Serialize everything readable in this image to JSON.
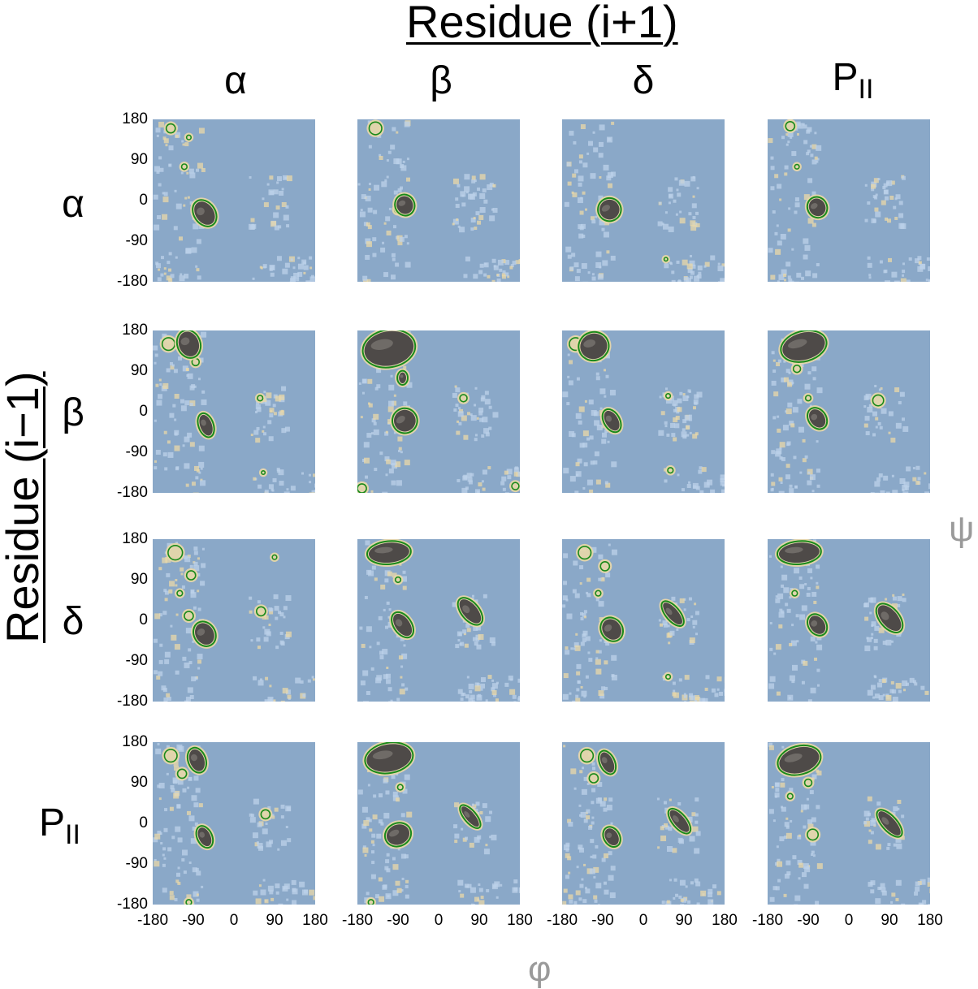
{
  "chart_data": {
    "type": "heatmap",
    "title": "",
    "column_header": "Residue (i+1)",
    "row_header": "Residue (i−1)",
    "columns": [
      {
        "label": "α",
        "sub": ""
      },
      {
        "label": "β",
        "sub": ""
      },
      {
        "label": "δ",
        "sub": ""
      },
      {
        "label": "P",
        "sub": "II"
      }
    ],
    "rows": [
      {
        "label": "α",
        "sub": ""
      },
      {
        "label": "β",
        "sub": ""
      },
      {
        "label": "δ",
        "sub": ""
      },
      {
        "label": "P",
        "sub": "II"
      }
    ],
    "xlabel": "φ",
    "ylabel": "ψ",
    "xlim": [
      -180,
      180
    ],
    "ylim": [
      -180,
      180
    ],
    "x_ticks": [
      "-180",
      "-90",
      "0",
      "90",
      "180"
    ],
    "y_ticks": [
      "180",
      "90",
      "0",
      "-90",
      "-180"
    ],
    "colors": {
      "background": "#8aa8c8",
      "speckle": "#bcd2ea",
      "low": "#e9d8a8",
      "contour": "#1a8a1a",
      "peak": "#4e4a48",
      "peak_highlight": "#8a8682"
    },
    "panels": [
      [
        {
          "peaks": [
            {
              "phi": -65,
              "psi": -28,
              "rphi": 20,
              "rpsi": 28,
              "rot": -35
            }
          ],
          "minor": [
            {
              "phi": -140,
              "psi": 160,
              "r": 10
            },
            {
              "phi": -110,
              "psi": 75,
              "r": 6
            },
            {
              "phi": -100,
              "psi": 140,
              "r": 5
            }
          ]
        },
        {
          "peaks": [
            {
              "phi": -75,
              "psi": -10,
              "rphi": 18,
              "rpsi": 20,
              "rot": -20
            }
          ],
          "minor": [
            {
              "phi": -140,
              "psi": 160,
              "r": 14
            },
            {
              "phi": -90,
              "psi": -20,
              "r": 8
            }
          ]
        },
        {
          "peaks": [
            {
              "phi": -75,
              "psi": -20,
              "rphi": 22,
              "rpsi": 22,
              "rot": -30
            }
          ],
          "minor": [
            {
              "phi": 50,
              "psi": -130,
              "r": 4
            }
          ]
        },
        {
          "peaks": [
            {
              "phi": -70,
              "psi": -15,
              "rphi": 18,
              "rpsi": 20,
              "rot": -30
            }
          ],
          "minor": [
            {
              "phi": -130,
              "psi": 165,
              "r": 10
            },
            {
              "phi": -115,
              "psi": 75,
              "r": 5
            }
          ]
        }
      ],
      [
        {
          "peaks": [
            {
              "phi": -100,
              "psi": 150,
              "rphi": 22,
              "rpsi": 28,
              "rot": -20
            },
            {
              "phi": -62,
              "psi": -30,
              "rphi": 13,
              "rpsi": 24,
              "rot": -20
            }
          ],
          "minor": [
            {
              "phi": -145,
              "psi": 150,
              "r": 14
            },
            {
              "phi": -85,
              "psi": 110,
              "r": 8
            },
            {
              "phi": 58,
              "psi": 30,
              "r": 6
            },
            {
              "phi": 65,
              "psi": -135,
              "r": 4
            }
          ]
        },
        {
          "peaks": [
            {
              "phi": -110,
              "psi": 140,
              "rphi": 55,
              "rpsi": 38,
              "rot": -10
            },
            {
              "phi": -75,
              "psi": -20,
              "rphi": 24,
              "rpsi": 24,
              "rot": -35
            },
            {
              "phi": -80,
              "psi": 75,
              "rphi": 8,
              "rpsi": 12,
              "rot": 0
            }
          ],
          "minor": [
            {
              "phi": 55,
              "psi": 30,
              "r": 8
            },
            {
              "phi": -170,
              "psi": -170,
              "r": 10
            },
            {
              "phi": 170,
              "psi": -165,
              "r": 8
            }
          ]
        },
        {
          "peaks": [
            {
              "phi": -110,
              "psi": 145,
              "rphi": 30,
              "rpsi": 28,
              "rot": -15
            },
            {
              "phi": -70,
              "psi": -20,
              "rphi": 14,
              "rpsi": 24,
              "rot": -30
            }
          ],
          "minor": [
            {
              "phi": -150,
              "psi": 150,
              "r": 14
            },
            {
              "phi": 60,
              "psi": -130,
              "r": 6
            },
            {
              "phi": 55,
              "psi": 35,
              "r": 5
            }
          ]
        },
        {
          "peaks": [
            {
              "phi": -100,
              "psi": 145,
              "rphi": 48,
              "rpsi": 30,
              "rot": -15
            },
            {
              "phi": -70,
              "psi": -15,
              "rphi": 16,
              "rpsi": 22,
              "rot": -35
            }
          ],
          "minor": [
            {
              "phi": 65,
              "psi": 25,
              "r": 12
            },
            {
              "phi": -115,
              "psi": 95,
              "r": 8
            },
            {
              "phi": -90,
              "psi": 30,
              "r": 6
            }
          ]
        }
      ],
      [
        {
          "peaks": [
            {
              "phi": -65,
              "psi": -30,
              "rphi": 20,
              "rpsi": 25,
              "rot": -30
            }
          ],
          "minor": [
            {
              "phi": -130,
              "psi": 150,
              "r": 16
            },
            {
              "phi": -95,
              "psi": 100,
              "r": 10
            },
            {
              "phi": 60,
              "psi": 20,
              "r": 10
            },
            {
              "phi": -120,
              "psi": 60,
              "r": 6
            },
            {
              "phi": -100,
              "psi": 10,
              "r": 10
            },
            {
              "phi": 90,
              "psi": 140,
              "r": 5
            }
          ]
        },
        {
          "peaks": [
            {
              "phi": -110,
              "psi": 150,
              "rphi": 45,
              "rpsi": 22,
              "rot": -5
            },
            {
              "phi": -80,
              "psi": -10,
              "rphi": 16,
              "rpsi": 28,
              "rot": -35
            },
            {
              "phi": 70,
              "psi": 20,
              "rphi": 16,
              "rpsi": 32,
              "rot": -40
            }
          ],
          "minor": [
            {
              "phi": -90,
              "psi": 90,
              "r": 6
            }
          ]
        },
        {
          "peaks": [
            {
              "phi": -70,
              "psi": -20,
              "rphi": 20,
              "rpsi": 24,
              "rot": -35
            },
            {
              "phi": 65,
              "psi": 15,
              "rphi": 12,
              "rpsi": 30,
              "rot": -40
            }
          ],
          "minor": [
            {
              "phi": -130,
              "psi": 150,
              "r": 14
            },
            {
              "phi": -85,
              "psi": 120,
              "r": 10
            },
            {
              "phi": 55,
              "psi": -125,
              "r": 5
            },
            {
              "phi": -100,
              "psi": 60,
              "r": 6
            }
          ]
        },
        {
          "peaks": [
            {
              "phi": -110,
              "psi": 150,
              "rphi": 45,
              "rpsi": 22,
              "rot": -5
            },
            {
              "phi": -70,
              "psi": -10,
              "rphi": 16,
              "rpsi": 22,
              "rot": -35
            },
            {
              "phi": 90,
              "psi": 5,
              "rphi": 18,
              "rpsi": 34,
              "rot": -40
            }
          ],
          "minor": [
            {
              "phi": -120,
              "psi": 60,
              "r": 6
            }
          ]
        }
      ],
      [
        {
          "peaks": [
            {
              "phi": -82,
              "psi": 140,
              "rphi": 16,
              "rpsi": 25,
              "rot": -20
            },
            {
              "phi": -65,
              "psi": -30,
              "rphi": 13,
              "rpsi": 22,
              "rot": -25
            }
          ],
          "minor": [
            {
              "phi": -140,
              "psi": 150,
              "r": 14
            },
            {
              "phi": -115,
              "psi": 110,
              "r": 10
            },
            {
              "phi": 70,
              "psi": 20,
              "r": 10
            },
            {
              "phi": -100,
              "psi": -175,
              "r": 6
            }
          ]
        },
        {
          "peaks": [
            {
              "phi": -110,
              "psi": 145,
              "rphi": 50,
              "rpsi": 30,
              "rot": -10
            },
            {
              "phi": -90,
              "psi": -25,
              "rphi": 26,
              "rpsi": 22,
              "rot": -25
            },
            {
              "phi": 70,
              "psi": 15,
              "rphi": 10,
              "rpsi": 28,
              "rot": -40
            }
          ],
          "minor": [
            {
              "phi": -85,
              "psi": 80,
              "r": 6
            },
            {
              "phi": -150,
              "psi": -175,
              "r": 6
            }
          ]
        },
        {
          "peaks": [
            {
              "phi": -80,
              "psi": 135,
              "rphi": 13,
              "rpsi": 24,
              "rot": -25
            },
            {
              "phi": -70,
              "psi": -30,
              "rphi": 14,
              "rpsi": 20,
              "rot": -30
            },
            {
              "phi": 80,
              "psi": 5,
              "rphi": 12,
              "rpsi": 30,
              "rot": -40
            }
          ],
          "minor": [
            {
              "phi": -125,
              "psi": 150,
              "r": 14
            },
            {
              "phi": -110,
              "psi": 100,
              "r": 10
            }
          ]
        },
        {
          "peaks": [
            {
              "phi": -110,
              "psi": 140,
              "rphi": 45,
              "rpsi": 28,
              "rot": -15
            },
            {
              "phi": 90,
              "psi": 0,
              "rphi": 13,
              "rpsi": 34,
              "rot": -42
            }
          ],
          "minor": [
            {
              "phi": -80,
              "psi": -25,
              "r": 12
            },
            {
              "phi": -90,
              "psi": 90,
              "r": 8
            },
            {
              "phi": -130,
              "psi": 60,
              "r": 6
            }
          ]
        }
      ]
    ]
  }
}
